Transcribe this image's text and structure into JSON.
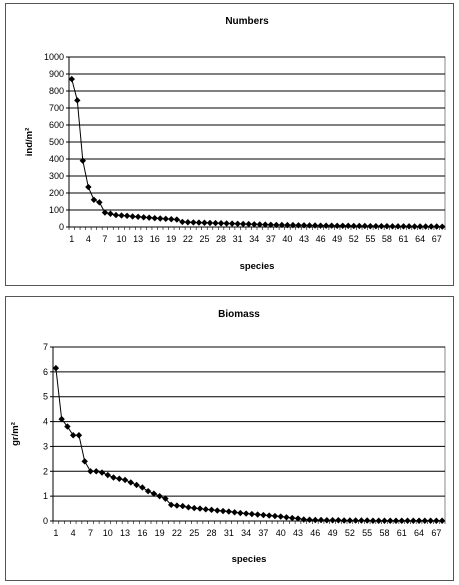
{
  "chart_data": [
    {
      "type": "line",
      "title": "Numbers",
      "xlabel": "species",
      "ylabel": "ind/m²",
      "ylim": [
        0,
        1000
      ],
      "yticks": [
        0,
        100,
        200,
        300,
        400,
        500,
        600,
        700,
        800,
        900,
        1000
      ],
      "xticks": [
        1,
        4,
        7,
        10,
        13,
        16,
        19,
        22,
        25,
        28,
        31,
        34,
        37,
        40,
        43,
        46,
        49,
        52,
        55,
        58,
        61,
        64,
        67
      ],
      "grid": true,
      "marker": "diamond",
      "x": [
        1,
        2,
        3,
        4,
        5,
        6,
        7,
        8,
        9,
        10,
        11,
        12,
        13,
        14,
        15,
        16,
        17,
        18,
        19,
        20,
        21,
        22,
        23,
        24,
        25,
        26,
        27,
        28,
        29,
        30,
        31,
        32,
        33,
        34,
        35,
        36,
        37,
        38,
        39,
        40,
        41,
        42,
        43,
        44,
        45,
        46,
        47,
        48,
        49,
        50,
        51,
        52,
        53,
        54,
        55,
        56,
        57,
        58,
        59,
        60,
        61,
        62,
        63,
        64,
        65,
        66,
        67,
        68
      ],
      "values": [
        870,
        745,
        390,
        235,
        160,
        145,
        85,
        78,
        70,
        68,
        66,
        62,
        60,
        57,
        55,
        52,
        50,
        48,
        46,
        44,
        30,
        28,
        27,
        26,
        25,
        24,
        23,
        22,
        21,
        20,
        19,
        18,
        17,
        16,
        15,
        14,
        13,
        12,
        12,
        11,
        11,
        10,
        10,
        9,
        9,
        8,
        8,
        8,
        7,
        7,
        7,
        6,
        6,
        6,
        5,
        5,
        5,
        5,
        4,
        4,
        4,
        4,
        3,
        3,
        3,
        3,
        3,
        2
      ]
    },
    {
      "type": "line",
      "title": "Biomass",
      "xlabel": "species",
      "ylabel": "gr/m²",
      "ylim": [
        0,
        7
      ],
      "yticks": [
        0,
        1,
        2,
        3,
        4,
        5,
        6,
        7
      ],
      "xticks": [
        1,
        4,
        7,
        10,
        13,
        16,
        19,
        22,
        25,
        28,
        31,
        34,
        37,
        40,
        43,
        46,
        49,
        52,
        55,
        58,
        61,
        64,
        67
      ],
      "grid": true,
      "marker": "diamond",
      "x": [
        1,
        2,
        3,
        4,
        5,
        6,
        7,
        8,
        9,
        10,
        11,
        12,
        13,
        14,
        15,
        16,
        17,
        18,
        19,
        20,
        21,
        22,
        23,
        24,
        25,
        26,
        27,
        28,
        29,
        30,
        31,
        32,
        33,
        34,
        35,
        36,
        37,
        38,
        39,
        40,
        41,
        42,
        43,
        44,
        45,
        46,
        47,
        48,
        49,
        50,
        51,
        52,
        53,
        54,
        55,
        56,
        57,
        58,
        59,
        60,
        61,
        62,
        63,
        64,
        65,
        66,
        67,
        68
      ],
      "values": [
        6.15,
        4.1,
        3.8,
        3.45,
        3.45,
        2.4,
        2.0,
        2.0,
        1.95,
        1.85,
        1.75,
        1.7,
        1.65,
        1.55,
        1.45,
        1.35,
        1.2,
        1.1,
        1.0,
        0.9,
        0.65,
        0.62,
        0.6,
        0.55,
        0.52,
        0.5,
        0.47,
        0.45,
        0.42,
        0.4,
        0.38,
        0.35,
        0.32,
        0.3,
        0.28,
        0.26,
        0.24,
        0.22,
        0.2,
        0.18,
        0.15,
        0.12,
        0.1,
        0.06,
        0.05,
        0.04,
        0.04,
        0.03,
        0.03,
        0.03,
        0.02,
        0.02,
        0.02,
        0.02,
        0.02,
        0.01,
        0.01,
        0.01,
        0.01,
        0.01,
        0.01,
        0.01,
        0.01,
        0.01,
        0.01,
        0.01,
        0.01,
        0.01
      ]
    }
  ]
}
